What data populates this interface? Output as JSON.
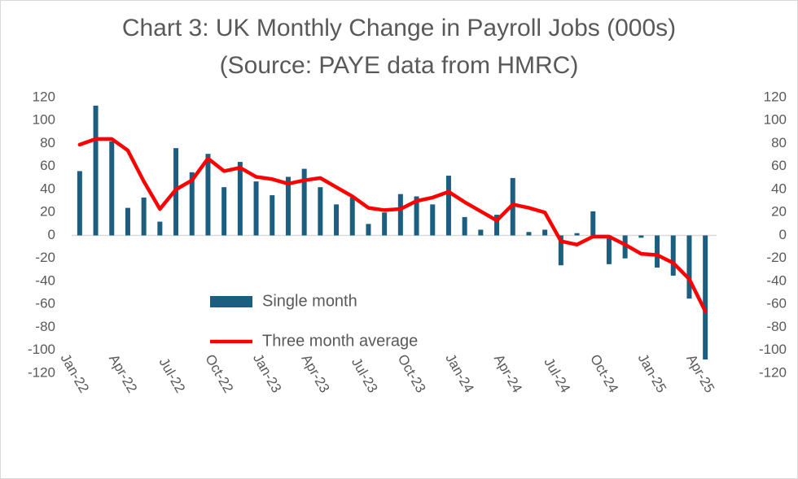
{
  "chart_data": {
    "type": "bar-line",
    "title": "Chart 3: UK Monthly Change in Payroll Jobs (000s)",
    "subtitle": "(Source: PAYE data from HMRC)",
    "categories": [
      "Jan-22",
      null,
      null,
      "Apr-22",
      null,
      null,
      "Jul-22",
      null,
      null,
      "Oct-22",
      null,
      null,
      "Jan-23",
      null,
      null,
      "Apr-23",
      null,
      null,
      "Jul-23",
      null,
      null,
      "Oct-23",
      null,
      null,
      "Jan-24",
      null,
      null,
      "Apr-24",
      null,
      null,
      "Jul-24",
      null,
      null,
      "Oct-24",
      null,
      null,
      "Jan-25",
      null,
      null,
      "Apr-25"
    ],
    "series": [
      {
        "name": "Single month",
        "color": "#1b5e80",
        "kind": "bar",
        "values": [
          56,
          113,
          82,
          24,
          33,
          12,
          76,
          55,
          71,
          42,
          64,
          47,
          35,
          51,
          58,
          42,
          27,
          33,
          10,
          20,
          36,
          34,
          27,
          52,
          16,
          5,
          18,
          50,
          3,
          5,
          -26,
          2,
          21,
          -25,
          -20,
          -2,
          -28,
          -35,
          -55,
          -108
        ]
      },
      {
        "name": "Three month average",
        "color": "#ff0000",
        "kind": "line",
        "axis": "y2",
        "values": [
          79,
          84,
          84,
          74,
          47,
          23,
          40,
          48,
          67,
          56,
          59,
          51,
          49,
          45,
          48,
          50,
          42,
          34,
          24,
          22,
          23,
          30,
          33,
          38,
          29,
          21,
          13,
          27,
          24,
          20,
          -5,
          -8,
          -1,
          -1,
          -8,
          -16,
          -17,
          -24,
          -38,
          -66
        ]
      }
    ],
    "ylim": [
      -120,
      120
    ],
    "yticks": [
      -120,
      -100,
      -80,
      -60,
      -40,
      -20,
      0,
      20,
      40,
      60,
      80,
      100,
      120
    ],
    "y2lim": [
      -120,
      120
    ],
    "y2ticks": [
      -120,
      -100,
      -80,
      -60,
      -40,
      -20,
      0,
      20,
      40,
      60,
      80,
      100,
      120
    ],
    "grid": false,
    "legend": "center-left"
  }
}
